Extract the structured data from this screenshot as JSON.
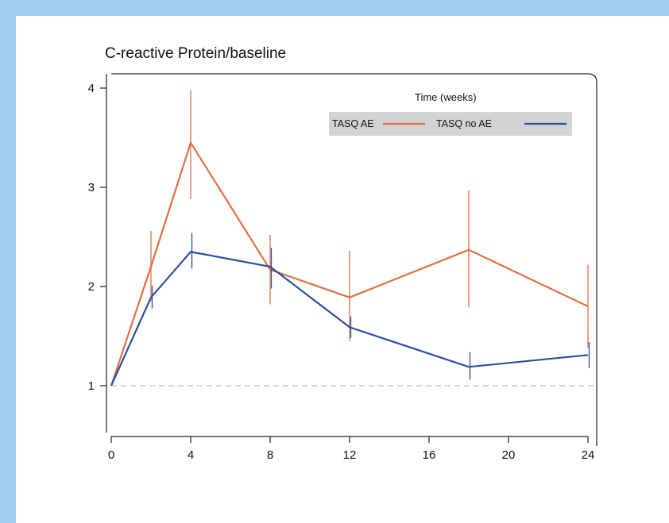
{
  "colors": {
    "page_border": "#a3cdef",
    "series_ae": "#e26f46",
    "series_no_ae": "#2b4f9c",
    "legend_bg": "#d2d3d4",
    "baseline": "#bbbbbb"
  },
  "chart_data": {
    "type": "line",
    "title": "C-reactive Protein/baseline",
    "xlabel": "",
    "ylabel": "",
    "legend_title": "Time (weeks)",
    "legend_position": "top-right",
    "xlim": [
      0,
      24
    ],
    "ylim": [
      0.5,
      4.1
    ],
    "x_ticks": [
      0,
      4,
      8,
      12,
      16,
      20,
      24
    ],
    "y_ticks": [
      1,
      2,
      3,
      4
    ],
    "reference_line_y": 1,
    "grid": false,
    "series": [
      {
        "name": "TASQ AE",
        "color": "#e26f46",
        "x": [
          0,
          2,
          4,
          8,
          12,
          18,
          24
        ],
        "y": [
          1.0,
          2.2,
          3.45,
          2.17,
          1.89,
          2.37,
          1.8
        ],
        "error_low": [
          1.0,
          1.85,
          2.88,
          1.82,
          1.45,
          1.79,
          1.38
        ],
        "error_high": [
          1.0,
          2.56,
          3.98,
          2.52,
          2.36,
          2.97,
          2.22
        ]
      },
      {
        "name": "TASQ no AE",
        "color": "#2b4f9c",
        "x": [
          0,
          2,
          4,
          8,
          12,
          18,
          24
        ],
        "y": [
          1.0,
          1.89,
          2.35,
          2.2,
          1.59,
          1.19,
          1.31
        ],
        "error_low": [
          1.0,
          1.78,
          2.18,
          1.98,
          1.48,
          1.06,
          1.18
        ],
        "error_high": [
          1.0,
          2.01,
          2.54,
          2.39,
          1.7,
          1.34,
          1.44
        ]
      }
    ]
  }
}
